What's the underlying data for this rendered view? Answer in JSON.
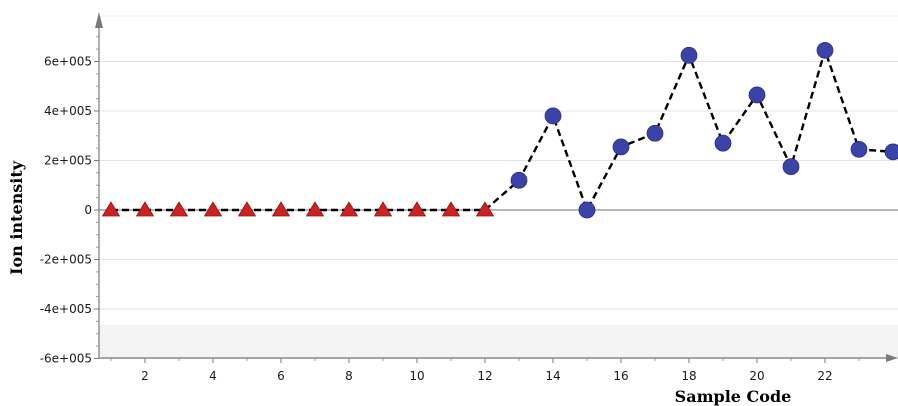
{
  "chart_data": {
    "type": "scatter",
    "title": "",
    "xlabel": "Sample Code",
    "ylabel": "Ion intensity",
    "xlim": [
      0.8,
      24.2
    ],
    "ylim": [
      -600000,
      750000
    ],
    "grid": true,
    "x_ticks": [
      2,
      4,
      6,
      8,
      10,
      12,
      14,
      16,
      18,
      20,
      22
    ],
    "x_tick_labels": [
      "2",
      "4",
      "6",
      "8",
      "10",
      "12",
      "14",
      "16",
      "18",
      "20",
      "22"
    ],
    "y_ticks": [
      -600000,
      -400000,
      -200000,
      0,
      200000,
      400000,
      600000
    ],
    "y_tick_labels": [
      "-6e+005",
      "-4e+005",
      "-2e+005",
      "0",
      "2e+005",
      "4e+005",
      "6e+005"
    ],
    "line_style": "dashed",
    "line_color": "#000000",
    "series": [
      {
        "marker": "triangle",
        "color": "#cc2222",
        "x": [
          1,
          2,
          3,
          4,
          5,
          6,
          7,
          8,
          9,
          10,
          11,
          12
        ],
        "y": [
          0,
          0,
          0,
          0,
          0,
          0,
          0,
          0,
          0,
          0,
          0,
          0
        ]
      },
      {
        "marker": "circle",
        "color": "#3a44a8",
        "x": [
          13,
          14,
          15,
          16,
          17,
          18,
          19,
          20,
          21,
          22,
          23,
          24
        ],
        "y": [
          120000,
          380000,
          0,
          255000,
          310000,
          625000,
          270000,
          465000,
          175000,
          645000,
          245000,
          235000
        ]
      }
    ]
  }
}
